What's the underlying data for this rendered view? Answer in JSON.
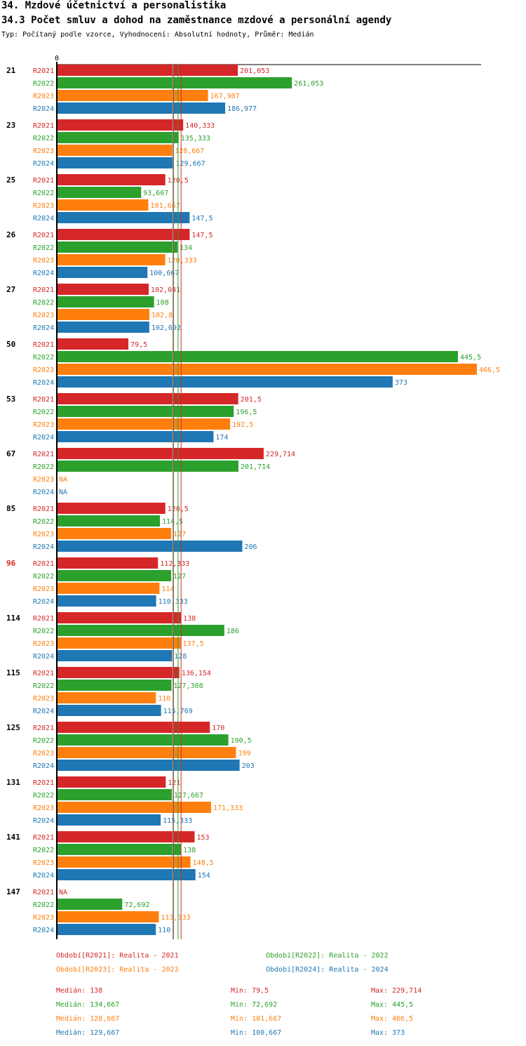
{
  "header": {
    "title": "34. Mzdové účetnictví a personalistika",
    "subtitle": "34.3 Počet smluv a dohod na zaměstnance mzdové a personální agendy",
    "meta": "Typ: Počítaný podle vzorce, Vyhodnocení: Absolutní hodnoty, Průměr: Medián"
  },
  "chart_data": {
    "type": "bar",
    "orientation": "horizontal",
    "axis_zero_label": "0",
    "xlim": [
      0,
      466.5
    ],
    "highlight_category": "96",
    "categories": [
      "21",
      "23",
      "25",
      "26",
      "27",
      "50",
      "53",
      "67",
      "85",
      "96",
      "114",
      "115",
      "125",
      "131",
      "141",
      "147"
    ],
    "series": [
      {
        "name": "R2021",
        "color": "#d62728",
        "values": [
          201.053,
          140.333,
          120.5,
          147.5,
          102.041,
          79.5,
          201.5,
          229.714,
          120.5,
          112.333,
          138,
          136.154,
          170,
          121,
          153,
          null
        ],
        "labels": [
          "201,053",
          "140,333",
          "120,5",
          "147,5",
          "102,041",
          "79,5",
          "201,5",
          "229,714",
          "120,5",
          "112,333",
          "138",
          "136,154",
          "170",
          "121",
          "153",
          "NA"
        ]
      },
      {
        "name": "R2022",
        "color": "#2ca02c",
        "values": [
          261.053,
          135.333,
          93.667,
          134,
          108,
          445.5,
          196.5,
          201.714,
          114.5,
          127,
          186,
          127.308,
          190.5,
          127.667,
          138,
          72.692
        ],
        "labels": [
          "261,053",
          "135,333",
          "93,667",
          "134",
          "108",
          "445,5",
          "196,5",
          "201,714",
          "114,5",
          "127",
          "186",
          "127,308",
          "190,5",
          "127,667",
          "138",
          "72,692"
        ]
      },
      {
        "name": "R2023",
        "color": "#ff7f0e",
        "values": [
          167.907,
          128.667,
          101.667,
          120.333,
          102.8,
          466.5,
          192.5,
          null,
          127,
          114,
          137.5,
          110,
          199,
          171.333,
          148.5,
          113.333
        ],
        "labels": [
          "167,907",
          "128,667",
          "101,667",
          "120,333",
          "102,8",
          "466,5",
          "192,5",
          "NA",
          "127",
          "114",
          "137,5",
          "110",
          "199",
          "171,333",
          "148,5",
          "113,333"
        ]
      },
      {
        "name": "R2024",
        "color": "#1f77b4",
        "values": [
          186.977,
          129.667,
          147.5,
          100.667,
          102.692,
          373,
          174,
          null,
          206,
          110.333,
          128,
          115.769,
          203,
          115.333,
          154,
          110
        ],
        "labels": [
          "186,977",
          "129,667",
          "147,5",
          "100,667",
          "102,692",
          "373",
          "174",
          "NA",
          "206",
          "110,333",
          "128",
          "115,769",
          "203",
          "115,333",
          "154",
          "110"
        ]
      }
    ],
    "median_lines": [
      138,
      134.667,
      128.667,
      129.667
    ],
    "legend": [
      {
        "text": "Období[R2021]: Realita - 2021",
        "color": "#d62728"
      },
      {
        "text": "Období[R2022]: Realita - 2022",
        "color": "#2ca02c"
      },
      {
        "text": "Období[R2023]: Realita - 2023",
        "color": "#ff7f0e"
      },
      {
        "text": "Období[R2024]: Realita - 2024",
        "color": "#1f77b4"
      }
    ],
    "stats": [
      {
        "median": "Medián: 138",
        "min": "Min: 79,5",
        "max": "Max: 229,714",
        "color": "#d62728"
      },
      {
        "median": "Medián: 134,667",
        "min": "Min: 72,692",
        "max": "Max: 445,5",
        "color": "#2ca02c"
      },
      {
        "median": "Medián: 128,667",
        "min": "Min: 101,667",
        "max": "Max: 466,5",
        "color": "#ff7f0e"
      },
      {
        "median": "Medián: 129,667",
        "min": "Min: 100,667",
        "max": "Max: 373",
        "color": "#1f77b4"
      }
    ]
  }
}
